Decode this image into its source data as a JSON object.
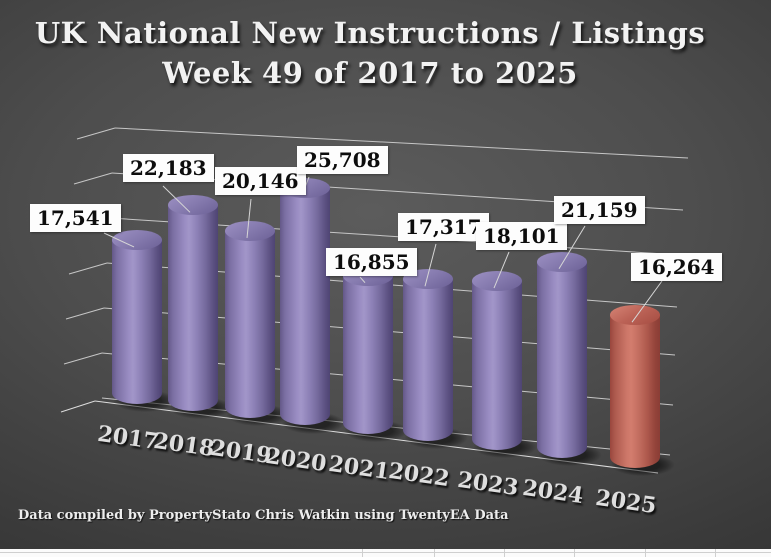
{
  "title": {
    "line1": "UK National New Instructions / Listings",
    "line2": "Week 49 of 2017 to 2025"
  },
  "footer": "Data compiled by PropertyStato Chris Watkin using TwentyEA Data",
  "chart_data": {
    "type": "bar",
    "style": "3d-cylinder",
    "title": "UK National New Instructions / Listings Week 49 of 2017 to 2025",
    "categories": [
      "2017",
      "2018",
      "2019",
      "2020",
      "2021",
      "2022",
      "2023",
      "2024",
      "2025"
    ],
    "values": [
      17541,
      22183,
      20146,
      25708,
      16855,
      17317,
      18101,
      21159,
      16264
    ],
    "value_labels": [
      "17,541",
      "22,183",
      "20,146",
      "25,708",
      "16,855",
      "17,317",
      "18,101",
      "21,159",
      "16,264"
    ],
    "ylim": [
      0,
      30000
    ],
    "gridline_step": 5000,
    "grid": "on",
    "legend": "none",
    "xlabel": "",
    "ylabel": "",
    "colors": {
      "bar_default": "#8d81b7",
      "bar_highlight": "#c26d5f",
      "highlight_category": "2025",
      "background_center": "#5c5c5c",
      "background_edge": "#2c2c2c",
      "gridline": "#c6c6c6",
      "label_box_bg": "#fdfdfd",
      "label_text": "#0d0d0d",
      "axis_text": "#dedede",
      "title_text": "#f2f2f2"
    },
    "highlight_index": 8
  }
}
